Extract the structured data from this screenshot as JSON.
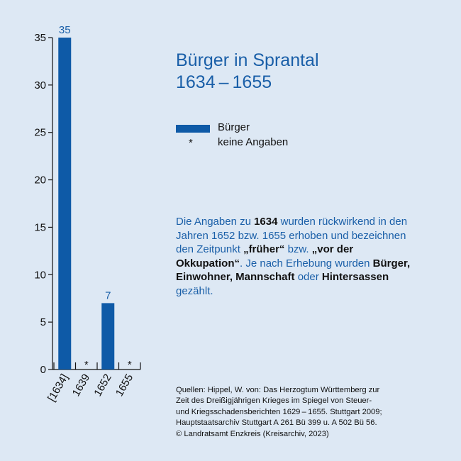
{
  "chart_data": {
    "type": "bar",
    "title": "Bürger in Sprantal",
    "subtitle": "1634 – 1655",
    "categories": [
      "[1634]",
      "1639",
      "1652",
      "1655"
    ],
    "values": [
      35,
      null,
      7,
      null
    ],
    "value_labels": [
      "35",
      "*",
      "7",
      "*"
    ],
    "ylim": [
      0,
      35
    ],
    "yticks": [
      0,
      5,
      10,
      15,
      20,
      25,
      30,
      35
    ],
    "grid": false,
    "legend": [
      {
        "symbol": "bar",
        "label": "Bürger"
      },
      {
        "symbol": "*",
        "label": "keine Angaben"
      }
    ],
    "colors": {
      "bar": "#0e5aa7",
      "value_label": "#1a5fa8",
      "axis": "#111111",
      "background": "#dde8f4"
    }
  },
  "note": {
    "parts": [
      {
        "text": "Die Angaben zu ",
        "bold": false
      },
      {
        "text": "1634",
        "bold": true
      },
      {
        "text": " wurden rückwirkend in den Jahren 1652 bzw. 1655 erhoben und bezeichnen den Zeitpunkt ",
        "bold": false
      },
      {
        "text": "„früher“",
        "bold": true
      },
      {
        "text": " bzw. ",
        "bold": false
      },
      {
        "text": "„vor der Okkupation“",
        "bold": true
      },
      {
        "text": ". Je nach Erhebung wurden ",
        "bold": false
      },
      {
        "text": "Bürger, Einwohner, Mannschaft",
        "bold": true
      },
      {
        "text": " oder ",
        "bold": false
      },
      {
        "text": "Hintersassen",
        "bold": true
      },
      {
        "text": " gezählt.",
        "bold": false
      }
    ]
  },
  "sources": [
    "Quellen: Hippel, W. von: Das Herzogtum Württemberg zur",
    "Zeit des Dreißigjährigen Krieges im Spiegel von Steuer-",
    "und Kriegsschadensberichten 1629 – 1655. Stuttgart 2009;",
    "Hauptstaatsarchiv Stuttgart A 261 Bü 399 u. A 502 Bü 56.",
    "© Landratsamt Enzkreis (Kreisarchiv, 2023)"
  ]
}
